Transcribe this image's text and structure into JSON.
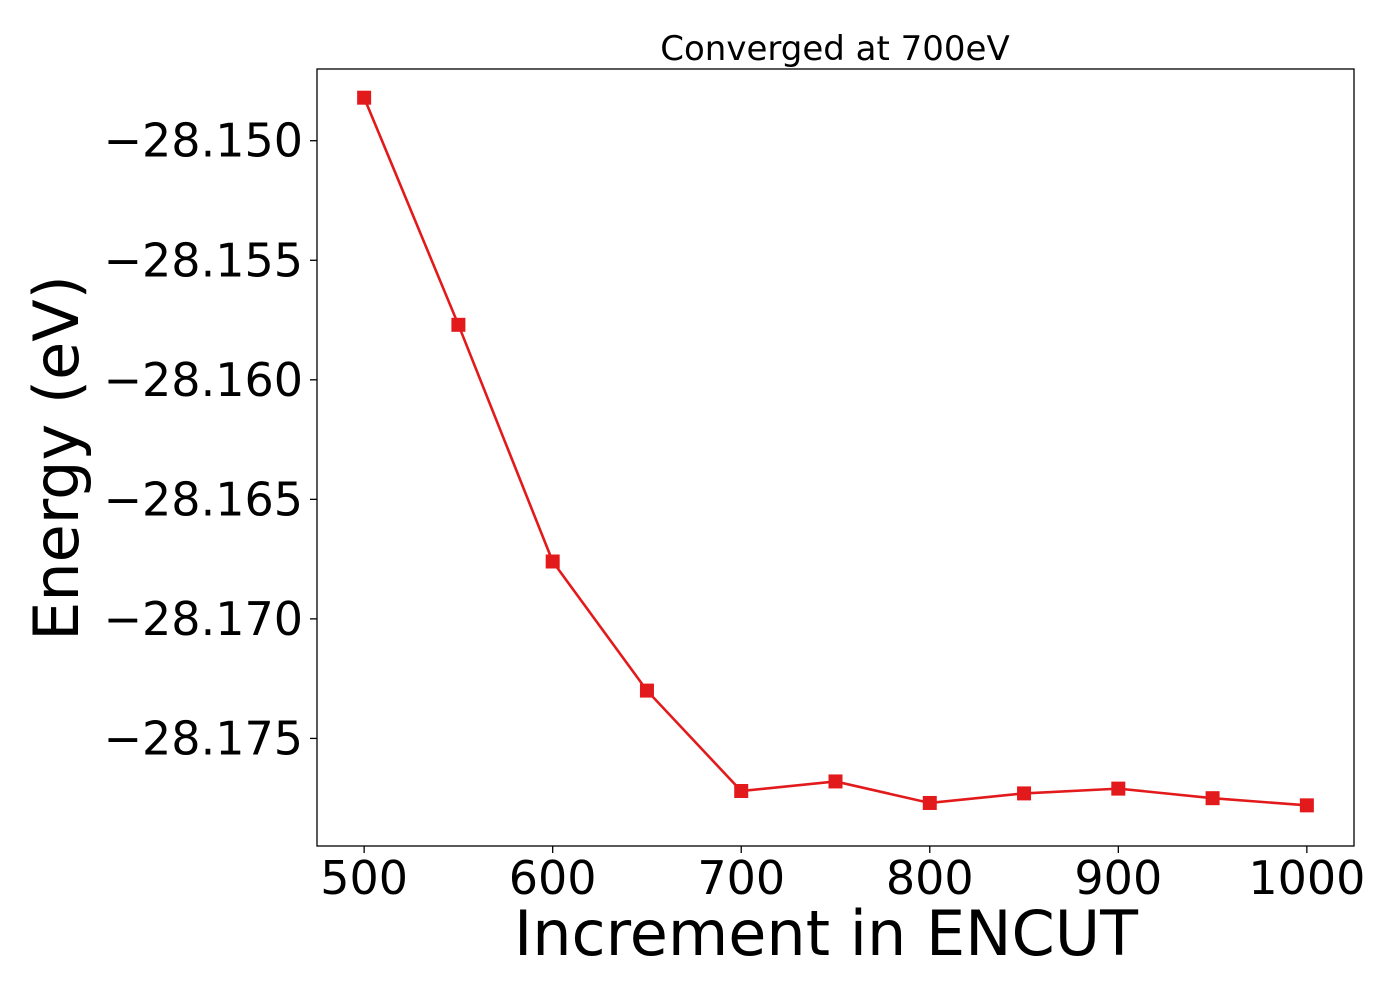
{
  "chart_data": {
    "type": "line",
    "title": "Converged at 700eV",
    "xlabel": "Increment in ENCUT",
    "ylabel": "Energy (eV)",
    "xlim": [
      475,
      1025
    ],
    "ylim": [
      -28.1795,
      -28.147
    ],
    "xticks": [
      500,
      600,
      700,
      800,
      900,
      1000
    ],
    "xtick_labels": [
      "500",
      "600",
      "700",
      "800",
      "900",
      "1000"
    ],
    "yticks": [
      -28.15,
      -28.155,
      -28.16,
      -28.165,
      -28.17,
      -28.175
    ],
    "ytick_labels": [
      "−28.150",
      "−28.155",
      "−28.160",
      "−28.165",
      "−28.170",
      "−28.175"
    ],
    "grid": false,
    "color": "#e31a1c",
    "marker": "square",
    "series": [
      {
        "x": [
          500,
          550,
          600,
          650,
          700,
          750,
          800,
          850,
          900,
          950,
          1000
        ],
        "values": [
          -28.1482,
          -28.1577,
          -28.1676,
          -28.173,
          -28.1772,
          -28.1768,
          -28.1777,
          -28.1773,
          -28.1771,
          -28.1775,
          -28.1778
        ]
      }
    ]
  }
}
